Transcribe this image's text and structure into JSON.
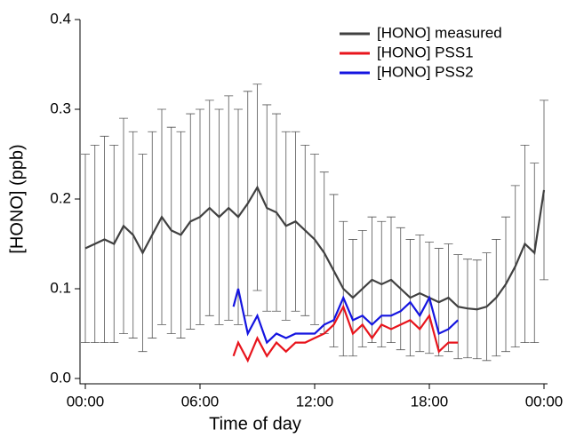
{
  "chart_data": {
    "type": "line",
    "xlabel": "Time of day",
    "ylabel": "[HONO] (ppb)",
    "xlim": [
      0,
      24
    ],
    "xticks": [
      {
        "value": 0,
        "label": "00:00"
      },
      {
        "value": 6,
        "label": "06:00"
      },
      {
        "value": 12,
        "label": "12:00"
      },
      {
        "value": 18,
        "label": "18:00"
      },
      {
        "value": 24,
        "label": "00:00"
      }
    ],
    "ylim": [
      0,
      0.4
    ],
    "yticks": [
      {
        "value": 0,
        "label": "0.0"
      },
      0.1,
      0.2,
      0.3,
      0.4
    ],
    "legend": "upper right",
    "series": [
      {
        "name": "[HONO] measured",
        "color": "#404040",
        "x": [
          0,
          0.5,
          1,
          1.5,
          2,
          2.5,
          3,
          3.5,
          4,
          4.5,
          5,
          5.5,
          6,
          6.5,
          7,
          7.5,
          8,
          8.5,
          9,
          9.5,
          10,
          10.5,
          11,
          11.5,
          12,
          12.5,
          13,
          13.5,
          14,
          14.5,
          15,
          15.5,
          16,
          16.5,
          17,
          17.5,
          18,
          18.5,
          19,
          19.5,
          20,
          20.5,
          21,
          21.5,
          22,
          22.5,
          23,
          23.5,
          24
        ],
        "values": [
          0.145,
          0.15,
          0.155,
          0.15,
          0.17,
          0.16,
          0.14,
          0.16,
          0.18,
          0.165,
          0.16,
          0.175,
          0.18,
          0.19,
          0.18,
          0.19,
          0.18,
          0.195,
          0.213,
          0.19,
          0.185,
          0.17,
          0.175,
          0.165,
          0.155,
          0.14,
          0.12,
          0.1,
          0.09,
          0.1,
          0.11,
          0.105,
          0.11,
          0.1,
          0.09,
          0.095,
          0.09,
          0.085,
          0.09,
          0.08,
          0.078,
          0.077,
          0.08,
          0.09,
          0.105,
          0.125,
          0.15,
          0.14,
          0.21
        ],
        "errors": [
          0.105,
          0.11,
          0.115,
          0.11,
          0.12,
          0.115,
          0.11,
          0.115,
          0.12,
          0.115,
          0.115,
          0.12,
          0.12,
          0.12,
          0.12,
          0.125,
          0.12,
          0.125,
          0.115,
          0.115,
          0.11,
          0.105,
          0.1,
          0.095,
          0.095,
          0.09,
          0.085,
          0.075,
          0.065,
          0.065,
          0.07,
          0.07,
          0.07,
          0.068,
          0.065,
          0.065,
          0.062,
          0.06,
          0.06,
          0.058,
          0.055,
          0.055,
          0.06,
          0.065,
          0.075,
          0.09,
          0.11,
          0.1,
          0.1
        ]
      },
      {
        "name": "[HONO] PSS1",
        "color": "#e8141c",
        "x": [
          7.75,
          8,
          8.5,
          9,
          9.5,
          10,
          10.5,
          11,
          11.5,
          12,
          12.5,
          13,
          13.5,
          14,
          14.5,
          15,
          15.5,
          16,
          16.5,
          17,
          17.5,
          18,
          18.5,
          19,
          19.5
        ],
        "values": [
          0.025,
          0.04,
          0.02,
          0.045,
          0.025,
          0.04,
          0.03,
          0.04,
          0.04,
          0.045,
          0.05,
          0.06,
          0.08,
          0.05,
          0.06,
          0.045,
          0.06,
          0.055,
          0.06,
          0.065,
          0.055,
          0.07,
          0.03,
          0.04,
          0.04
        ]
      },
      {
        "name": "[HONO] PSS2",
        "color": "#1414e0",
        "x": [
          7.75,
          8,
          8.5,
          9,
          9.5,
          10,
          10.5,
          11,
          11.5,
          12,
          12.5,
          13,
          13.5,
          14,
          14.5,
          15,
          15.5,
          16,
          16.5,
          17,
          17.5,
          18,
          18.5,
          19,
          19.5
        ],
        "values": [
          0.08,
          0.1,
          0.05,
          0.07,
          0.04,
          0.05,
          0.045,
          0.05,
          0.05,
          0.05,
          0.06,
          0.065,
          0.09,
          0.065,
          0.07,
          0.06,
          0.07,
          0.07,
          0.075,
          0.085,
          0.07,
          0.09,
          0.05,
          0.055,
          0.065
        ]
      }
    ]
  }
}
